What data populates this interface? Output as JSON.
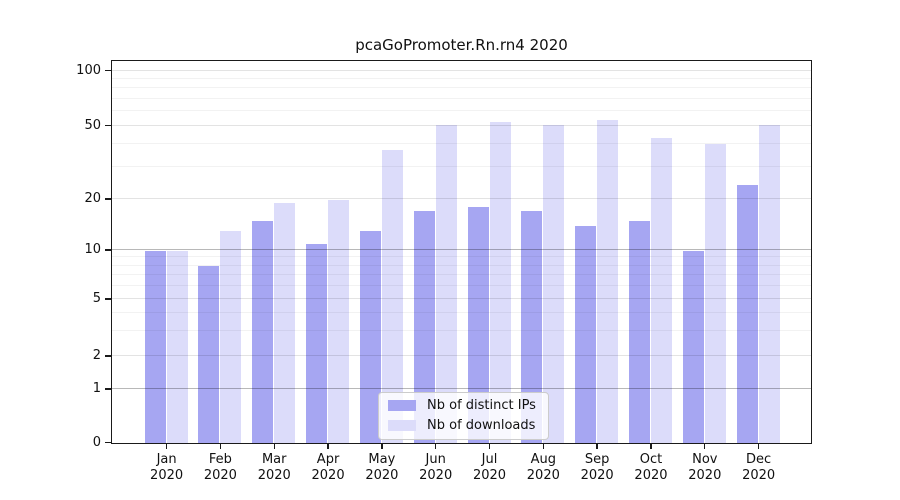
{
  "title": "pcaGoPromoter.Rn.rn4 2020",
  "chart_data": {
    "type": "bar",
    "title": "pcaGoPromoter.Rn.rn4 2020",
    "categories": [
      "Jan",
      "Feb",
      "Mar",
      "Apr",
      "May",
      "Jun",
      "Jul",
      "Aug",
      "Sep",
      "Oct",
      "Nov",
      "Dec"
    ],
    "year_label": "2020",
    "series": [
      {
        "name": "Nb of distinct IPs",
        "color": "#a6a6f2",
        "values": [
          10,
          8,
          15,
          11,
          13,
          17,
          18,
          17,
          14,
          15,
          10,
          24
        ]
      },
      {
        "name": "Nb of downloads",
        "color": "#dcdcfa",
        "values": [
          10,
          13,
          19,
          20,
          37,
          51,
          53,
          51,
          54,
          43,
          40,
          51
        ]
      }
    ],
    "xlabel": "",
    "ylabel": "",
    "y_axis": {
      "scale": "log-like (0,1,2,5,10,20,50,100)",
      "tick_labels": [
        "0",
        "1",
        "2",
        "5",
        "10",
        "20",
        "50",
        "100"
      ],
      "major_gridlines": [
        1,
        2,
        5,
        10,
        20,
        50,
        100
      ],
      "emphasized_gridlines": [
        1,
        10
      ],
      "minor_gridlines": [
        3,
        4,
        6,
        7,
        8,
        9,
        30,
        40,
        60,
        70,
        80,
        90
      ],
      "ylim": [
        0,
        110
      ]
    },
    "grid": true,
    "legend_position": "bottom-center"
  },
  "legend": {
    "items": [
      {
        "label": "Nb of distinct IPs"
      },
      {
        "label": "Nb of downloads"
      }
    ]
  }
}
